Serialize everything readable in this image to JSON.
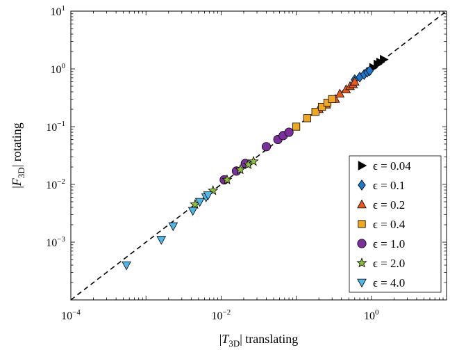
{
  "chart_data": {
    "type": "scatter",
    "xscale": "log",
    "yscale": "log",
    "xlim": [
      0.0001,
      10
    ],
    "ylim": [
      0.0001,
      10
    ],
    "xlabel": {
      "pre": "|",
      "var": "T",
      "sub": "3D",
      "post": "| translating"
    },
    "ylabel": {
      "pre": "|",
      "var": "F",
      "sub": "3D",
      "post": "| rotating"
    },
    "xticks": [
      {
        "value": 0.0001,
        "base": "10",
        "exp": "−4"
      },
      {
        "value": 0.01,
        "base": "10",
        "exp": "−2"
      },
      {
        "value": 1,
        "base": "10",
        "exp": "0"
      }
    ],
    "yticks": [
      {
        "value": 0.001,
        "base": "10",
        "exp": "−3"
      },
      {
        "value": 0.01,
        "base": "10",
        "exp": "−2"
      },
      {
        "value": 0.1,
        "base": "10",
        "exp": "−1"
      },
      {
        "value": 1,
        "base": "10",
        "exp": "0"
      },
      {
        "value": 10,
        "base": "10",
        "exp": "1"
      }
    ],
    "reference_line": {
      "style": "dashed",
      "color": "#000000",
      "x": [
        0.0001,
        10
      ],
      "y": [
        0.0001,
        10
      ]
    },
    "legend": {
      "position": "lower-right"
    },
    "series": [
      {
        "name": "ϵ = 0.04",
        "marker": "triangle-right",
        "color": "#000000",
        "x": [
          1.05,
          1.2,
          1.3,
          1.45
        ],
        "y": [
          1.05,
          1.2,
          1.3,
          1.45
        ]
      },
      {
        "name": "ϵ = 0.1",
        "marker": "diamond",
        "color": "#1f77c8",
        "x": [
          0.6,
          0.7,
          0.8,
          0.88,
          0.95
        ],
        "y": [
          0.65,
          0.72,
          0.8,
          0.88,
          0.93
        ]
      },
      {
        "name": "ϵ = 0.2",
        "marker": "triangle-up",
        "color": "#e65b1c",
        "x": [
          0.2,
          0.25,
          0.33,
          0.38,
          0.46,
          0.52,
          0.57,
          0.6
        ],
        "y": [
          0.2,
          0.24,
          0.3,
          0.37,
          0.44,
          0.5,
          0.54,
          0.6
        ]
      },
      {
        "name": "ϵ = 0.4",
        "marker": "square",
        "color": "#f0a820",
        "x": [
          0.1,
          0.14,
          0.18,
          0.22,
          0.26,
          0.3
        ],
        "y": [
          0.1,
          0.14,
          0.18,
          0.22,
          0.26,
          0.3
        ]
      },
      {
        "name": "ϵ = 1.0",
        "marker": "circle",
        "color": "#7b2f9a",
        "x": [
          0.011,
          0.016,
          0.021,
          0.04,
          0.057,
          0.067,
          0.08
        ],
        "y": [
          0.012,
          0.017,
          0.023,
          0.045,
          0.06,
          0.07,
          0.08
        ]
      },
      {
        "name": "ϵ = 2.0",
        "marker": "star",
        "color": "#8bbf3c",
        "x": [
          0.0045,
          0.0078,
          0.012,
          0.018,
          0.023,
          0.027
        ],
        "y": [
          0.0045,
          0.0078,
          0.012,
          0.018,
          0.022,
          0.025
        ]
      },
      {
        "name": "ϵ = 4.0",
        "marker": "triangle-down",
        "color": "#4fb6e8",
        "x": [
          0.00055,
          0.0016,
          0.0023,
          0.0042,
          0.0052,
          0.0063,
          0.0067
        ],
        "y": [
          0.0004,
          0.0011,
          0.0019,
          0.0035,
          0.005,
          0.006,
          0.0065
        ]
      }
    ]
  }
}
